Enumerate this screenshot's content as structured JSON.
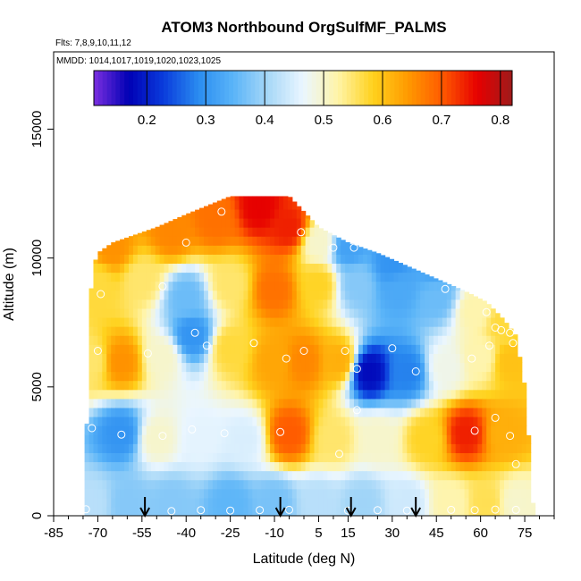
{
  "chart_data": {
    "type": "heatmap",
    "title": "ATOM3 Northbound OrgSulfMF_PALMS",
    "subtitle_flights": "Flts: 7,8,9,10,11,12",
    "subtitle_dates": "MMDD: 1014,1017,1019,1020,1023,1025",
    "xlabel": "Latitude (deg N)",
    "ylabel": "Altitude (m)",
    "xlim": [
      -85,
      85
    ],
    "ylim": [
      0,
      18000
    ],
    "x_ticks": [
      -85,
      -70,
      -55,
      -40,
      -25,
      -10,
      5,
      15,
      30,
      45,
      60,
      75
    ],
    "y_ticks": [
      0,
      5000,
      10000,
      15000
    ],
    "colorbar": {
      "min": 0.11,
      "max": 0.82,
      "ticks": [
        0.2,
        0.3,
        0.4,
        0.5,
        0.6,
        0.7,
        0.8
      ],
      "tick_labels": [
        "0.2",
        "0.3",
        "0.4",
        "0.5",
        "0.6",
        "0.7",
        "0.8"
      ],
      "palette": [
        "#7b2fe0",
        "#0000b4",
        "#0a3cdc",
        "#2a8cf0",
        "#5ab4f8",
        "#a8d8f8",
        "#eaf6ff",
        "#fff4a8",
        "#ffd21e",
        "#ff9a00",
        "#ff5a00",
        "#e60000",
        "#9e1b1b"
      ]
    },
    "altitude_top_by_latitude": [
      [
        -75,
        0
      ],
      [
        -74,
        2500
      ],
      [
        -73,
        6800
      ],
      [
        -72,
        9500
      ],
      [
        -70,
        10200
      ],
      [
        -65,
        10600
      ],
      [
        -50,
        11200
      ],
      [
        -40,
        11700
      ],
      [
        -25,
        12400
      ],
      [
        -5,
        12400
      ],
      [
        0,
        11800
      ],
      [
        5,
        11200
      ],
      [
        15,
        10600
      ],
      [
        25,
        10200
      ],
      [
        35,
        9700
      ],
      [
        45,
        9200
      ],
      [
        55,
        8700
      ],
      [
        62,
        8300
      ],
      [
        68,
        7600
      ],
      [
        72,
        7000
      ],
      [
        75,
        5000
      ],
      [
        77,
        2000
      ],
      [
        78,
        0
      ]
    ],
    "field_samples": [
      {
        "lat": -72,
        "alt": 500,
        "value": 0.42
      },
      {
        "lat": -60,
        "alt": 500,
        "value": 0.38
      },
      {
        "lat": -45,
        "alt": 500,
        "value": 0.38
      },
      {
        "lat": -25,
        "alt": 500,
        "value": 0.35
      },
      {
        "lat": -10,
        "alt": 500,
        "value": 0.37
      },
      {
        "lat": 5,
        "alt": 500,
        "value": 0.42
      },
      {
        "lat": 20,
        "alt": 500,
        "value": 0.4
      },
      {
        "lat": 35,
        "alt": 500,
        "value": 0.44
      },
      {
        "lat": 50,
        "alt": 500,
        "value": 0.52
      },
      {
        "lat": 62,
        "alt": 500,
        "value": 0.56
      },
      {
        "lat": 72,
        "alt": 500,
        "value": 0.5
      },
      {
        "lat": -62,
        "alt": 3200,
        "value": 0.3
      },
      {
        "lat": -50,
        "alt": 3000,
        "value": 0.5
      },
      {
        "lat": -35,
        "alt": 3000,
        "value": 0.46
      },
      {
        "lat": -20,
        "alt": 3000,
        "value": 0.45
      },
      {
        "lat": -5,
        "alt": 3200,
        "value": 0.7
      },
      {
        "lat": 10,
        "alt": 3000,
        "value": 0.55
      },
      {
        "lat": 25,
        "alt": 3000,
        "value": 0.5
      },
      {
        "lat": 42,
        "alt": 3000,
        "value": 0.58
      },
      {
        "lat": 55,
        "alt": 3200,
        "value": 0.74
      },
      {
        "lat": 68,
        "alt": 3200,
        "value": 0.62
      },
      {
        "lat": -72,
        "alt": 6000,
        "value": 0.55
      },
      {
        "lat": -62,
        "alt": 6000,
        "value": 0.65
      },
      {
        "lat": -48,
        "alt": 6200,
        "value": 0.5
      },
      {
        "lat": -38,
        "alt": 7000,
        "value": 0.3
      },
      {
        "lat": -25,
        "alt": 6500,
        "value": 0.57
      },
      {
        "lat": -10,
        "alt": 6000,
        "value": 0.63
      },
      {
        "lat": 0,
        "alt": 6000,
        "value": 0.66
      },
      {
        "lat": 12,
        "alt": 6000,
        "value": 0.62
      },
      {
        "lat": 22,
        "alt": 5600,
        "value": 0.18
      },
      {
        "lat": 35,
        "alt": 5600,
        "value": 0.28
      },
      {
        "lat": 48,
        "alt": 5800,
        "value": 0.48
      },
      {
        "lat": 60,
        "alt": 6200,
        "value": 0.52
      },
      {
        "lat": 70,
        "alt": 6000,
        "value": 0.6
      },
      {
        "lat": -70,
        "alt": 9000,
        "value": 0.57
      },
      {
        "lat": -55,
        "alt": 9200,
        "value": 0.55
      },
      {
        "lat": -40,
        "alt": 8500,
        "value": 0.36
      },
      {
        "lat": -25,
        "alt": 9000,
        "value": 0.55
      },
      {
        "lat": -10,
        "alt": 8800,
        "value": 0.68
      },
      {
        "lat": 5,
        "alt": 9000,
        "value": 0.58
      },
      {
        "lat": 18,
        "alt": 9000,
        "value": 0.38
      },
      {
        "lat": 32,
        "alt": 8800,
        "value": 0.33
      },
      {
        "lat": 45,
        "alt": 8500,
        "value": 0.36
      },
      {
        "lat": 58,
        "alt": 8000,
        "value": 0.52
      },
      {
        "lat": 68,
        "alt": 7400,
        "value": 0.57
      },
      {
        "lat": -65,
        "alt": 10400,
        "value": 0.65
      },
      {
        "lat": -45,
        "alt": 11000,
        "value": 0.66
      },
      {
        "lat": -30,
        "alt": 11500,
        "value": 0.68
      },
      {
        "lat": -15,
        "alt": 12000,
        "value": 0.76
      },
      {
        "lat": -5,
        "alt": 11200,
        "value": 0.74
      },
      {
        "lat": 5,
        "alt": 10600,
        "value": 0.5
      },
      {
        "lat": 15,
        "alt": 10400,
        "value": 0.32
      },
      {
        "lat": 30,
        "alt": 9800,
        "value": 0.3
      },
      {
        "lat": 45,
        "alt": 9600,
        "value": 0.32
      }
    ],
    "sample_points": [
      [
        -74,
        250
      ],
      [
        -45,
        180
      ],
      [
        -35,
        220
      ],
      [
        -25,
        200
      ],
      [
        -15,
        220
      ],
      [
        -5,
        230
      ],
      [
        15,
        200
      ],
      [
        25,
        220
      ],
      [
        35,
        200
      ],
      [
        50,
        230
      ],
      [
        58,
        220
      ],
      [
        65,
        240
      ],
      [
        72,
        230
      ],
      [
        -72,
        3400
      ],
      [
        -62,
        3150
      ],
      [
        -48,
        3100
      ],
      [
        -38,
        3350
      ],
      [
        -27,
        3200
      ],
      [
        -8,
        3250
      ],
      [
        12,
        2400
      ],
      [
        18,
        4100
      ],
      [
        58,
        3300
      ],
      [
        65,
        3800
      ],
      [
        70,
        3100
      ],
      [
        72,
        2000
      ],
      [
        -70,
        6400
      ],
      [
        -53,
        6300
      ],
      [
        -33,
        6600
      ],
      [
        -17,
        6700
      ],
      [
        -6,
        6100
      ],
      [
        0,
        6400
      ],
      [
        14,
        6400
      ],
      [
        18,
        5700
      ],
      [
        30,
        6500
      ],
      [
        38,
        5600
      ],
      [
        57,
        6100
      ],
      [
        63,
        6600
      ],
      [
        71,
        6700
      ],
      [
        67,
        7200
      ],
      [
        -69,
        8600
      ],
      [
        -48,
        8900
      ],
      [
        -37,
        7100
      ],
      [
        48,
        8800
      ],
      [
        62,
        7900
      ],
      [
        65,
        7300
      ],
      [
        70,
        7100
      ],
      [
        -71,
        10600
      ],
      [
        -40,
        10600
      ],
      [
        -28,
        11800
      ],
      [
        -10,
        12600
      ],
      [
        -1,
        11000
      ],
      [
        10,
        10400
      ],
      [
        17,
        10400
      ],
      [
        40,
        10000
      ]
    ],
    "flight_arrows_latitude": [
      -54,
      -8,
      16,
      38
    ]
  }
}
